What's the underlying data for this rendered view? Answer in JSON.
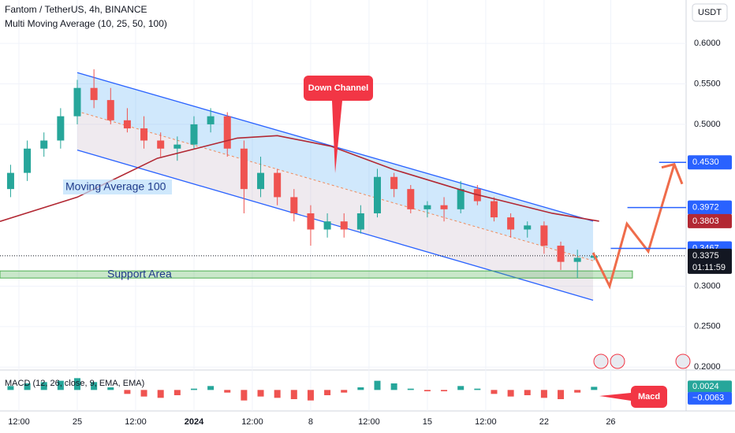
{
  "header": {
    "title": "Fantom / TetherUS, 4h, BINANCE",
    "indicator": "Multi Moving Average (10, 25, 50, 100)",
    "currency_button": "USDT"
  },
  "chart_data": {
    "type": "candlestick",
    "x": [
      -4,
      -3,
      -2,
      -1,
      0,
      1,
      2,
      3,
      4,
      5,
      6,
      7,
      8,
      9,
      10,
      11,
      12,
      13,
      14,
      15,
      16,
      17,
      18,
      19,
      20,
      21,
      22,
      23,
      24,
      25,
      26,
      27,
      28,
      29,
      30,
      31
    ],
    "open": [
      0.42,
      0.44,
      0.47,
      0.48,
      0.51,
      0.545,
      0.53,
      0.505,
      0.495,
      0.48,
      0.47,
      0.475,
      0.5,
      0.51,
      0.47,
      0.42,
      0.44,
      0.41,
      0.39,
      0.37,
      0.38,
      0.37,
      0.39,
      0.435,
      0.42,
      0.395,
      0.4,
      0.395,
      0.42,
      0.405,
      0.385,
      0.37,
      0.375,
      0.35,
      0.33,
      0.335
    ],
    "high": [
      0.45,
      0.48,
      0.49,
      0.52,
      0.555,
      0.568,
      0.545,
      0.52,
      0.51,
      0.49,
      0.485,
      0.51,
      0.52,
      0.515,
      0.48,
      0.46,
      0.445,
      0.42,
      0.4,
      0.39,
      0.39,
      0.4,
      0.445,
      0.44,
      0.425,
      0.405,
      0.41,
      0.43,
      0.425,
      0.41,
      0.39,
      0.38,
      0.38,
      0.355,
      0.345,
      0.342
    ],
    "low": [
      0.41,
      0.43,
      0.46,
      0.47,
      0.5,
      0.52,
      0.5,
      0.49,
      0.47,
      0.46,
      0.455,
      0.47,
      0.49,
      0.46,
      0.39,
      0.41,
      0.4,
      0.38,
      0.35,
      0.36,
      0.36,
      0.365,
      0.385,
      0.41,
      0.39,
      0.385,
      0.38,
      0.39,
      0.4,
      0.38,
      0.36,
      0.36,
      0.34,
      0.32,
      0.31,
      0.332
    ],
    "close": [
      0.44,
      0.47,
      0.48,
      0.51,
      0.545,
      0.53,
      0.505,
      0.495,
      0.48,
      0.47,
      0.475,
      0.5,
      0.51,
      0.47,
      0.42,
      0.44,
      0.41,
      0.39,
      0.37,
      0.38,
      0.37,
      0.39,
      0.435,
      0.42,
      0.395,
      0.4,
      0.395,
      0.42,
      0.405,
      0.385,
      0.37,
      0.375,
      0.35,
      0.33,
      0.335,
      0.3375
    ],
    "up_color": "#26a69a",
    "down_color": "#ef5350",
    "xlim": [
      -4.636,
      36.52
    ],
    "xticks": [
      {
        "value": -3.5,
        "label": "12:00"
      },
      {
        "value": 0,
        "label": "25"
      },
      {
        "value": 3.5,
        "label": "12:00"
      },
      {
        "value": 7,
        "label": "2024"
      },
      {
        "value": 10.5,
        "label": "12:00"
      },
      {
        "value": 14,
        "label": "8"
      },
      {
        "value": 17.5,
        "label": "12:00"
      },
      {
        "value": 21,
        "label": "15"
      },
      {
        "value": 24.5,
        "label": "12:00"
      },
      {
        "value": 28,
        "label": "22"
      },
      {
        "value": 32,
        "label": "26"
      }
    ],
    "ylim": [
      0.1963,
      0.6537
    ],
    "yticks": [
      {
        "value": 0.6,
        "label": "0.6000"
      },
      {
        "value": 0.55,
        "label": "0.5500"
      },
      {
        "value": 0.5,
        "label": "0.5000"
      },
      {
        "value": 0.3,
        "label": "0.3000"
      },
      {
        "value": 0.25,
        "label": "0.2500"
      },
      {
        "value": 0.2,
        "label": "0.2000"
      }
    ],
    "grid": true,
    "ma": {
      "name": "Moving Average 100",
      "color": "#b22833",
      "x": [
        -4.636,
        0,
        4.8,
        9.6,
        12,
        15.2,
        19,
        23.8,
        28.5,
        31.3
      ],
      "values": [
        0.38,
        0.41,
        0.458,
        0.483,
        0.486,
        0.473,
        0.444,
        0.414,
        0.39,
        0.3803
      ]
    },
    "channel": {
      "title": "Down Channel",
      "color": "#2962ff",
      "x": [
        0,
        30.94
      ],
      "upper": [
        0.5639,
        0.3803
      ],
      "lower": [
        0.4682,
        0.2826
      ]
    },
    "support": {
      "label": "Support Area",
      "x": [
        -4.636,
        33.3
      ],
      "values": [
        0.3188,
        0.31
      ]
    },
    "projection": {
      "color": "#ef6c4b",
      "x": [
        30.94,
        31.93,
        32.97,
        34.25,
        35.81
      ],
      "values": [
        0.3412,
        0.3,
        0.377,
        0.343,
        0.4506
      ]
    },
    "levels": [
      {
        "value": 0.453,
        "label": "0.4530",
        "x": 34.9
      },
      {
        "value": 0.3972,
        "label": "0.3972",
        "x": 33.0
      },
      {
        "value": 0.3467,
        "label": "0.3467",
        "x": 32.0
      }
    ],
    "ma_price": {
      "value": 0.3803,
      "label": "0.3803"
    },
    "last_price": {
      "value": 0.3375,
      "label": "0.3375",
      "countdown": "01:11:59"
    },
    "macd": {
      "title": "MACD (12, 26, close, 9, EMA, EMA)",
      "callout": "Macd",
      "ylim": [
        -0.016,
        0.014
      ],
      "histogram": [
        0.003,
        0.005,
        0.006,
        0.007,
        0.009,
        0.006,
        0.002,
        -0.003,
        -0.005,
        -0.006,
        -0.004,
        0.001,
        0.003,
        -0.002,
        -0.008,
        -0.005,
        -0.006,
        -0.007,
        -0.008,
        -0.004,
        -0.002,
        0.002,
        0.007,
        0.005,
        0.001,
        -0.001,
        -0.001,
        0.003,
        0.001,
        -0.003,
        -0.005,
        -0.004,
        -0.006,
        -0.007,
        -0.002,
        0.0024
      ],
      "labels": [
        {
          "value": 0.0024,
          "label": "0.0024"
        },
        {
          "value": -0.0063,
          "label": "−0.0063"
        }
      ]
    }
  }
}
